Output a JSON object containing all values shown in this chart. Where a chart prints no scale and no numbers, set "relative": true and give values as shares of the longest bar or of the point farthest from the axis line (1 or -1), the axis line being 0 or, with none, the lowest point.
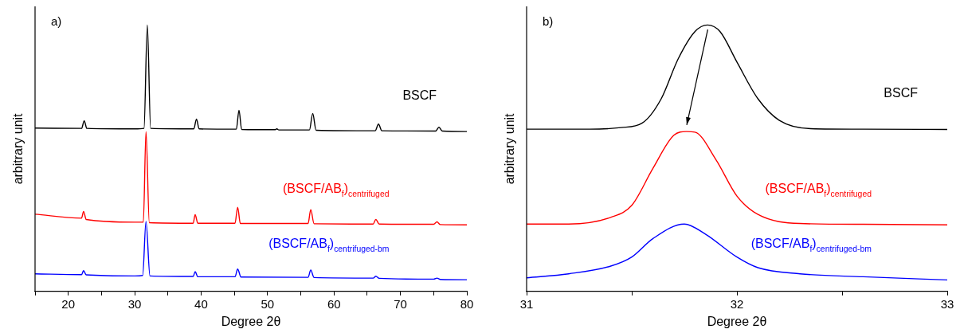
{
  "chart_data": [
    {
      "type": "line",
      "title": "a)",
      "xlabel": "Degree 2θ",
      "ylabel": "arbitrary unit",
      "relative": true,
      "xlim": [
        15,
        80
      ],
      "xticks": [
        {
          "value": 15,
          "label": null
        },
        20,
        {
          "value": 25,
          "label": null
        },
        30,
        {
          "value": 35,
          "label": null
        },
        40,
        {
          "value": 45,
          "label": null
        },
        50,
        {
          "value": 55,
          "label": null
        },
        60,
        {
          "value": 65,
          "label": null
        },
        70,
        {
          "value": 75,
          "label": null
        },
        80
      ],
      "marker": "none",
      "legend": false,
      "grid": false,
      "series": [
        {
          "name": "BSCF",
          "color": "#000000",
          "x": [
            15,
            22,
            22.4,
            22.8,
            30,
            31.4,
            31.9,
            32.4,
            38.9,
            39.3,
            39.7,
            45.3,
            45.7,
            46.1,
            51.1,
            51.4,
            51.7,
            56.3,
            56.8,
            57.3,
            66.2,
            66.7,
            67.2,
            75.3,
            75.8,
            76.3,
            80
          ],
          "values": [
            0.613,
            0.612,
            0.64,
            0.612,
            0.61,
            0.612,
            1.0,
            0.612,
            0.61,
            0.647,
            0.61,
            0.609,
            0.68,
            0.608,
            0.607,
            0.61,
            0.606,
            0.606,
            0.668,
            0.605,
            0.603,
            0.628,
            0.603,
            0.602,
            0.616,
            0.602,
            0.6
          ]
        },
        {
          "name": "(BSCF/AB$_{f}$)$_{centrifuged}$",
          "color": "#ff0000",
          "x": [
            15,
            22,
            22.3,
            22.7,
            30,
            31.3,
            31.7,
            32.2,
            38.8,
            39.1,
            39.5,
            45.1,
            45.5,
            45.9,
            56.1,
            56.5,
            57,
            65.9,
            66.3,
            66.8,
            75,
            75.5,
            76,
            80
          ],
          "values": [
            0.29,
            0.275,
            0.3,
            0.27,
            0.26,
            0.26,
            0.6,
            0.258,
            0.256,
            0.288,
            0.256,
            0.256,
            0.316,
            0.255,
            0.255,
            0.307,
            0.254,
            0.253,
            0.27,
            0.253,
            0.252,
            0.261,
            0.251,
            0.25
          ]
        },
        {
          "name": "(BSCF/AB$_{f}$)$_{centrifuged-bm}$",
          "color": "#0000ff",
          "x": [
            15,
            22,
            22.3,
            22.7,
            30,
            31.2,
            31.7,
            32.3,
            38.8,
            39.1,
            39.5,
            45.1,
            45.5,
            46,
            56.1,
            56.5,
            57,
            65.9,
            66.3,
            66.8,
            75,
            75.5,
            76,
            80
          ],
          "values": [
            0.066,
            0.063,
            0.078,
            0.062,
            0.058,
            0.06,
            0.263,
            0.058,
            0.056,
            0.074,
            0.055,
            0.055,
            0.084,
            0.054,
            0.053,
            0.08,
            0.052,
            0.05,
            0.057,
            0.049,
            0.046,
            0.05,
            0.045,
            0.044
          ]
        }
      ]
    },
    {
      "type": "line",
      "title": "b)",
      "xlabel": "Degree 2θ",
      "ylabel": "arbitrary unit",
      "relative": true,
      "xlim": [
        31,
        33
      ],
      "xticks": [
        31,
        {
          "value": 31.5,
          "label": null
        },
        32,
        {
          "value": 32.5,
          "label": null
        },
        33
      ],
      "marker": "none",
      "legend": false,
      "grid": false,
      "series": [
        {
          "name": "BSCF",
          "color": "#000000",
          "x": [
            31,
            31.3,
            31.45,
            31.55,
            31.64,
            31.72,
            31.8,
            31.86,
            31.92,
            32,
            32.1,
            32.2,
            32.35,
            32.6,
            33
          ],
          "values": [
            0.609,
            0.609,
            0.615,
            0.632,
            0.723,
            0.872,
            0.975,
            1.0,
            0.975,
            0.861,
            0.723,
            0.643,
            0.611,
            0.609,
            0.608
          ]
        },
        {
          "name": "(BSCF/AB$_{f}$)$_{centrifuged}$",
          "color": "#ff0000",
          "x": [
            31,
            31.2,
            31.4,
            31.5,
            31.6,
            31.7,
            31.76,
            31.8,
            31.9,
            32,
            32.1,
            32.3,
            32.6,
            33
          ],
          "values": [
            0.253,
            0.253,
            0.278,
            0.323,
            0.461,
            0.586,
            0.6,
            0.598,
            0.495,
            0.358,
            0.289,
            0.255,
            0.252,
            0.25
          ]
        },
        {
          "name": "(BSCF/AB$_{f}$)$_{centrifuged-bm}$",
          "color": "#0000ff",
          "x": [
            31,
            31.2,
            31.4,
            31.5,
            31.6,
            31.75,
            31.85,
            32,
            32.1,
            32.3,
            32.6,
            33
          ],
          "values": [
            0.051,
            0.066,
            0.095,
            0.129,
            0.198,
            0.253,
            0.215,
            0.129,
            0.089,
            0.066,
            0.055,
            0.043
          ]
        }
      ]
    }
  ]
}
